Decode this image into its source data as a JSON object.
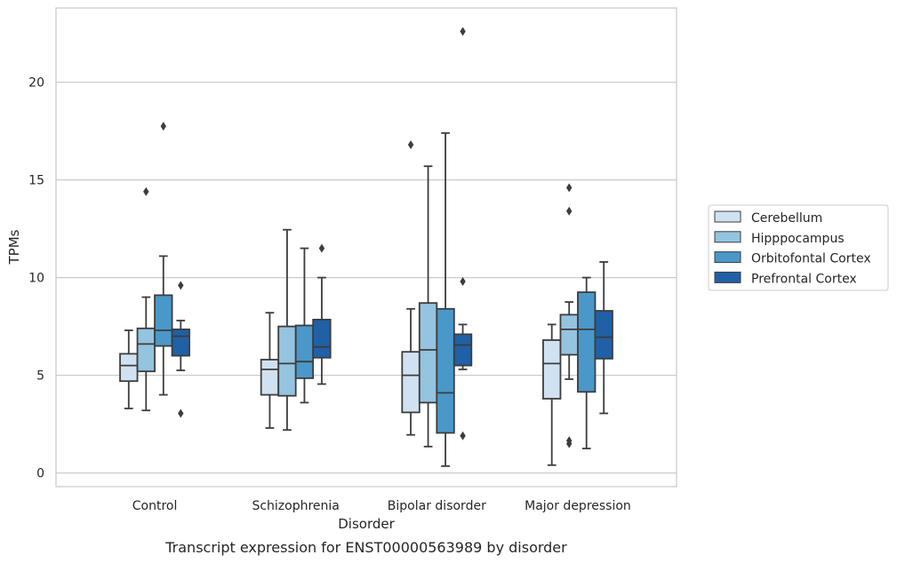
{
  "chart_data": {
    "type": "box",
    "caption": "Transcript expression for ENST00000563989 by disorder",
    "xlabel": "Disorder",
    "ylabel": "TPMs",
    "ylim": [
      -0.7,
      23.8
    ],
    "yticks": [
      0,
      5,
      10,
      15,
      20
    ],
    "grid": "horizontal",
    "legend_position": "right",
    "categories": [
      "Control",
      "Schizophrenia",
      "Bipolar disorder",
      "Major depression"
    ],
    "series": [
      {
        "name": "Cerebellum",
        "color": "#d0e1f2",
        "boxes": [
          {
            "whisker_low": 3.3,
            "q1": 4.7,
            "median": 5.5,
            "q3": 6.1,
            "whisker_high": 7.3,
            "outliers": []
          },
          {
            "whisker_low": 2.3,
            "q1": 4.0,
            "median": 5.3,
            "q3": 5.8,
            "whisker_high": 8.2,
            "outliers": []
          },
          {
            "whisker_low": 1.95,
            "q1": 3.1,
            "median": 5.0,
            "q3": 6.2,
            "whisker_high": 8.4,
            "outliers": [
              16.8
            ]
          },
          {
            "whisker_low": 0.4,
            "q1": 3.8,
            "median": 5.6,
            "q3": 6.8,
            "whisker_high": 7.6,
            "outliers": []
          }
        ]
      },
      {
        "name": "Hipppocampus",
        "color": "#94c4df",
        "boxes": [
          {
            "whisker_low": 3.2,
            "q1": 5.2,
            "median": 6.6,
            "q3": 7.4,
            "whisker_high": 9.0,
            "outliers": [
              14.4
            ]
          },
          {
            "whisker_low": 2.2,
            "q1": 3.95,
            "median": 5.6,
            "q3": 7.5,
            "whisker_high": 12.45,
            "outliers": []
          },
          {
            "whisker_low": 1.35,
            "q1": 3.6,
            "median": 6.3,
            "q3": 8.7,
            "whisker_high": 15.7,
            "outliers": []
          },
          {
            "whisker_low": 4.8,
            "q1": 6.05,
            "median": 7.35,
            "q3": 8.1,
            "whisker_high": 8.75,
            "outliers": [
              14.6,
              13.4,
              1.65,
              1.5
            ]
          }
        ]
      },
      {
        "name": "Orbitofontal Cortex",
        "color": "#4a98c9",
        "boxes": [
          {
            "whisker_low": 4.0,
            "q1": 6.5,
            "median": 7.3,
            "q3": 9.1,
            "whisker_high": 11.1,
            "outliers": [
              17.75
            ]
          },
          {
            "whisker_low": 3.6,
            "q1": 4.85,
            "median": 5.7,
            "q3": 7.55,
            "whisker_high": 11.5,
            "outliers": []
          },
          {
            "whisker_low": 0.35,
            "q1": 2.05,
            "median": 4.1,
            "q3": 8.4,
            "whisker_high": 17.4,
            "outliers": []
          },
          {
            "whisker_low": 1.25,
            "q1": 4.15,
            "median": 7.35,
            "q3": 9.25,
            "whisker_high": 10.0,
            "outliers": []
          }
        ]
      },
      {
        "name": "Prefrontal Cortex",
        "color": "#2060a7",
        "boxes": [
          {
            "whisker_low": 5.25,
            "q1": 6.0,
            "median": 7.0,
            "q3": 7.35,
            "whisker_high": 7.8,
            "outliers": [
              9.6,
              3.05
            ]
          },
          {
            "whisker_low": 4.55,
            "q1": 5.9,
            "median": 6.45,
            "q3": 7.85,
            "whisker_high": 10.0,
            "outliers": [
              11.5
            ]
          },
          {
            "whisker_low": 5.3,
            "q1": 5.5,
            "median": 6.55,
            "q3": 7.1,
            "whisker_high": 7.6,
            "outliers": [
              22.6,
              9.8,
              1.9
            ]
          },
          {
            "whisker_low": 3.05,
            "q1": 5.85,
            "median": 6.95,
            "q3": 8.3,
            "whisker_high": 10.8,
            "outliers": []
          }
        ]
      }
    ]
  }
}
